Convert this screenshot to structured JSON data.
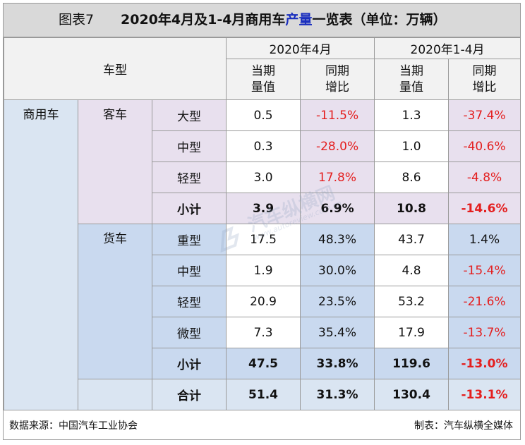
{
  "title": {
    "figure": "图表7",
    "part1": "2020年4月及1-4月商用车",
    "highlight": "产量",
    "part2": "一览表（单位：万辆）"
  },
  "header": {
    "vehicle_type": "车型",
    "period_april": "2020年4月",
    "period_jan_apr": "2020年1-4月",
    "current_value": "当期\n量值",
    "yoy_change": "同期\n增比"
  },
  "groups": {
    "commercial": "商用车",
    "bus": "客车",
    "truck": "货车"
  },
  "bus_rows": [
    {
      "type": "大型",
      "apr": "0.5",
      "apr_yoy": "-11.5%",
      "ytd": "1.3",
      "ytd_yoy": "-37.4%"
    },
    {
      "type": "中型",
      "apr": "0.3",
      "apr_yoy": "-28.0%",
      "ytd": "1.0",
      "ytd_yoy": "-40.6%"
    },
    {
      "type": "轻型",
      "apr": "3.0",
      "apr_yoy": "17.8%",
      "ytd": "8.6",
      "ytd_yoy": "-4.8%"
    }
  ],
  "bus_subtotal": {
    "type": "小计",
    "apr": "3.9",
    "apr_yoy": "6.9%",
    "ytd": "10.8",
    "ytd_yoy": "-14.6%"
  },
  "truck_rows": [
    {
      "type": "重型",
      "apr": "17.5",
      "apr_yoy": "48.3%",
      "ytd": "43.7",
      "ytd_yoy": "1.4%"
    },
    {
      "type": "中型",
      "apr": "1.9",
      "apr_yoy": "30.0%",
      "ytd": "4.8",
      "ytd_yoy": "-15.4%"
    },
    {
      "type": "轻型",
      "apr": "20.9",
      "apr_yoy": "23.5%",
      "ytd": "53.2",
      "ytd_yoy": "-21.6%"
    },
    {
      "type": "微型",
      "apr": "7.3",
      "apr_yoy": "35.4%",
      "ytd": "17.9",
      "ytd_yoy": "-13.7%"
    }
  ],
  "truck_subtotal": {
    "type": "小计",
    "apr": "47.5",
    "apr_yoy": "33.8%",
    "ytd": "119.6",
    "ytd_yoy": "-13.0%"
  },
  "total": {
    "type": "合计",
    "apr": "51.4",
    "apr_yoy": "31.3%",
    "ytd": "130.4",
    "ytd_yoy": "-13.1%"
  },
  "footer": {
    "source": "数据来源：中国汽车工业协会",
    "made_by": "制表：汽车纵横全媒体"
  },
  "watermark": {
    "text": "汽车纵横网",
    "url": "www.autoreview.com.cn"
  },
  "colors": {
    "negative": "#e41e1e",
    "highlight": "#1a2fbf",
    "bus_bg": "#e8e0ee",
    "truck_bg": "#c9d9ef"
  }
}
